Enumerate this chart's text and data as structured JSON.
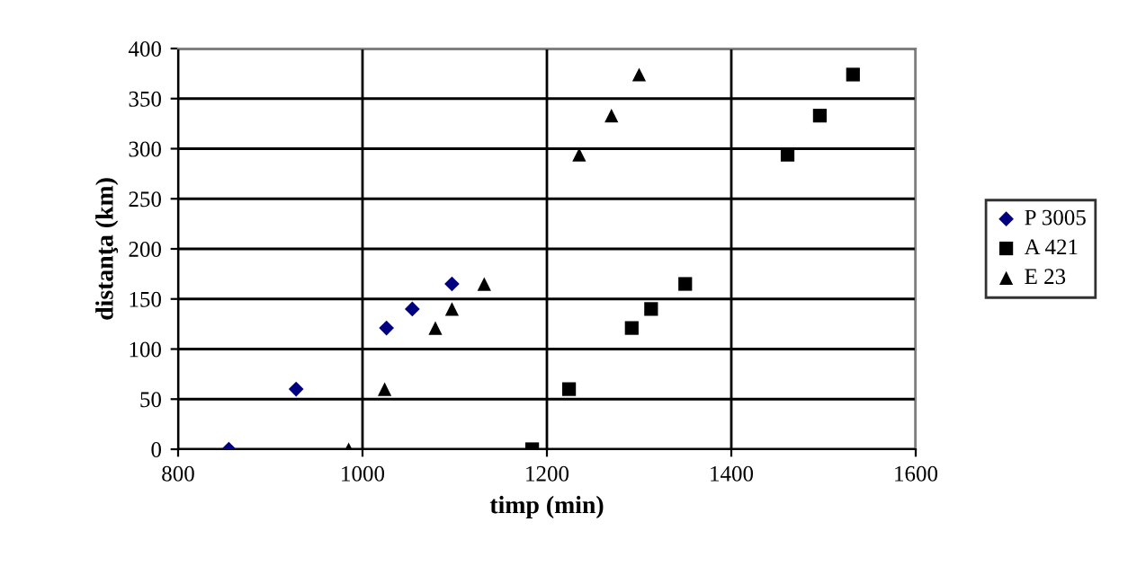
{
  "chart_data": {
    "type": "scatter",
    "xlabel": "timp (min)",
    "ylabel": "distanţa (km)",
    "xlim": [
      800,
      1600
    ],
    "xticks": [
      800,
      1000,
      1200,
      1400,
      1600
    ],
    "ylim": [
      0,
      400
    ],
    "yticks": [
      0,
      50,
      100,
      150,
      200,
      250,
      300,
      350,
      400
    ],
    "grid": true,
    "legend": "right",
    "series": [
      {
        "name": "P 3005",
        "color": "#000080",
        "marker": "diamond",
        "x": [
          855,
          928,
          1026,
          1054,
          1097
        ],
        "values": [
          0,
          60,
          121,
          140,
          165
        ]
      },
      {
        "name": "A 421",
        "color": "#000000",
        "marker": "square",
        "x": [
          1184,
          1224,
          1292,
          1313,
          1350,
          1461,
          1496,
          1532
        ],
        "values": [
          0,
          60,
          121,
          140,
          165,
          294,
          333,
          374
        ]
      },
      {
        "name": "E 23",
        "color": "#000000",
        "marker": "triangle",
        "x": [
          985,
          1024,
          1079,
          1097,
          1132,
          1235,
          1270,
          1300
        ],
        "values": [
          0,
          60,
          121,
          140,
          165,
          294,
          333,
          374
        ]
      }
    ]
  }
}
